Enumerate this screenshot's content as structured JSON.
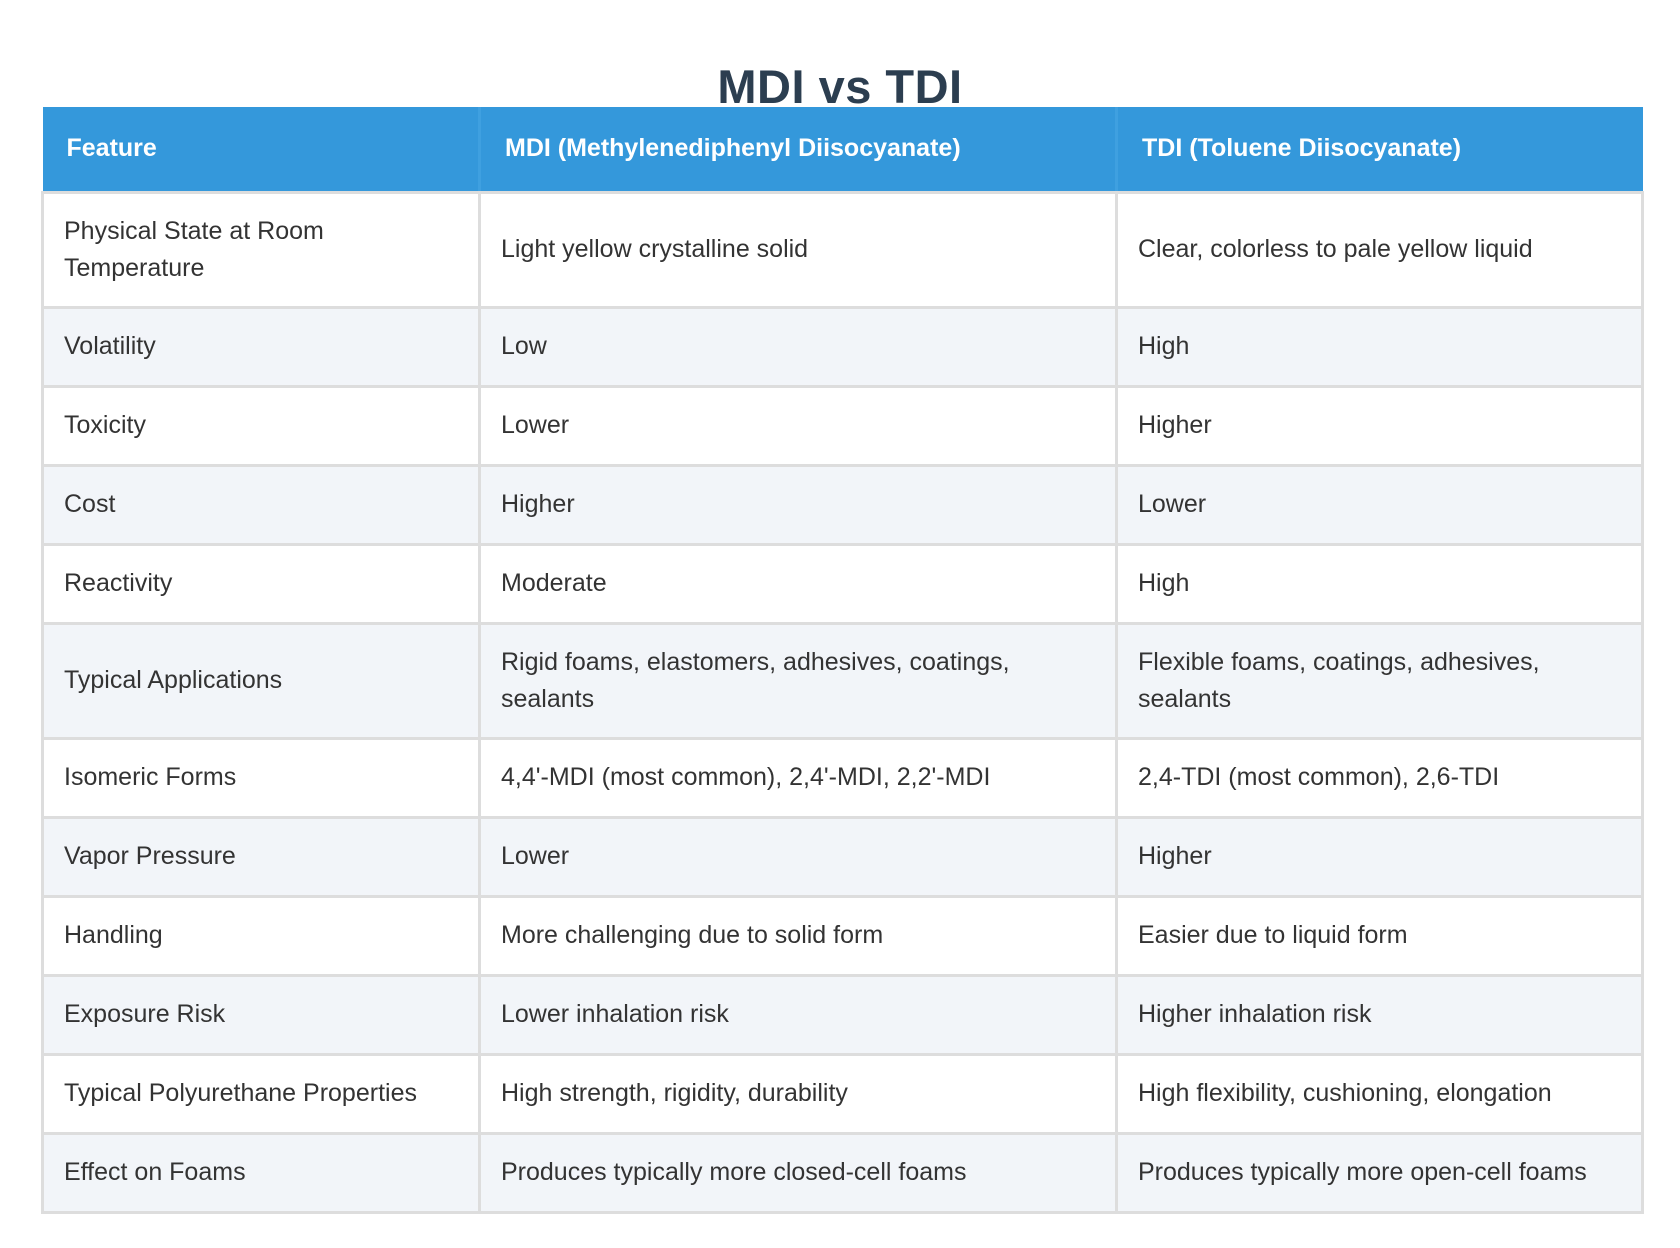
{
  "title": "MDI vs TDI",
  "table": {
    "headers": [
      "Feature",
      "MDI (Methylenediphenyl Diisocyanate)",
      "TDI (Toluene Diisocyanate)"
    ],
    "rows": [
      [
        "Physical State at Room Temperature",
        "Light yellow crystalline solid",
        "Clear, colorless to pale yellow liquid"
      ],
      [
        "Volatility",
        "Low",
        "High"
      ],
      [
        "Toxicity",
        "Lower",
        "Higher"
      ],
      [
        "Cost",
        "Higher",
        "Lower"
      ],
      [
        "Reactivity",
        "Moderate",
        "High"
      ],
      [
        "Typical Applications",
        "Rigid foams, elastomers, adhesives, coatings, sealants",
        "Flexible foams, coatings, adhesives, sealants"
      ],
      [
        "Isomeric Forms",
        "4,4'-MDI (most common), 2,4'-MDI, 2,2'-MDI",
        "2,4-TDI (most common), 2,6-TDI"
      ],
      [
        "Vapor Pressure",
        "Lower",
        "Higher"
      ],
      [
        "Handling",
        "More challenging due to solid form",
        "Easier due to liquid form"
      ],
      [
        "Exposure Risk",
        "Lower inhalation risk",
        "Higher inhalation risk"
      ],
      [
        "Typical Polyurethane Properties",
        "High strength, rigidity, durability",
        "High flexibility, cushioning, elongation"
      ],
      [
        "Effect on Foams",
        "Produces typically more closed-cell foams",
        "Produces typically more open-cell foams"
      ]
    ]
  },
  "colors": {
    "header_bg": "#3498db",
    "header_text": "#ffffff",
    "title_text": "#2c3e50",
    "row_alt_bg": "#f2f5f9",
    "border": "#dddddd"
  }
}
